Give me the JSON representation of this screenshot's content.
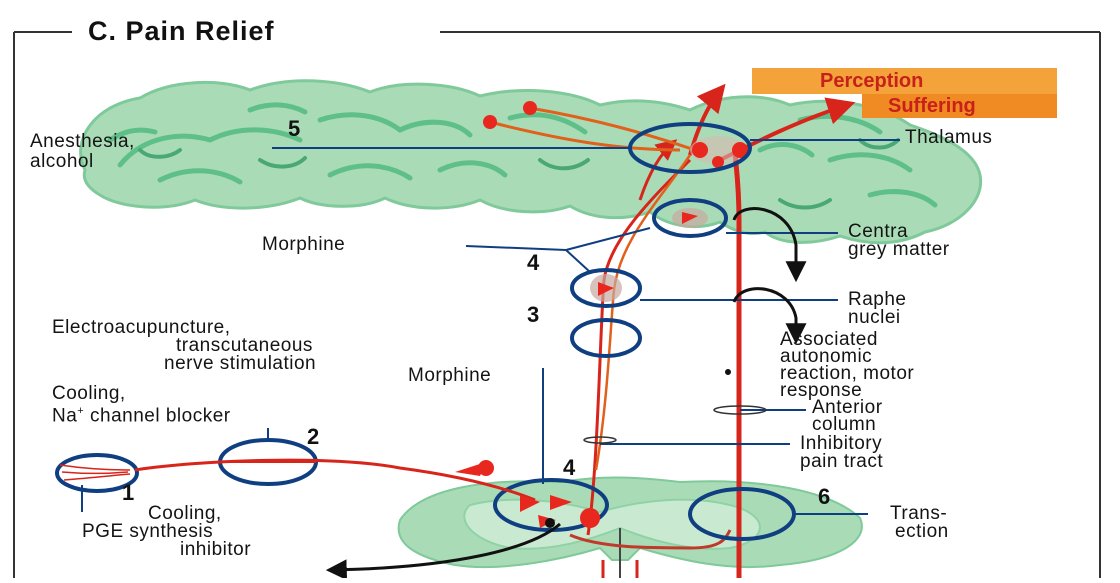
{
  "title": "C. Pain Relief",
  "colors": {
    "brain_fill": "#a9dcb6",
    "brain_dark": "#5fbf88",
    "tract_red": "#d8251c",
    "nerve_orange": "#e0601c",
    "circle_blue": "#0f3f80",
    "perception_box": "#f4a23a",
    "suffering_box": "#f08a22"
  },
  "labels": {
    "perception": "Perception",
    "suffering": "Suffering",
    "thalamus": "Thalamus",
    "anesthesia_line1": "Anesthesia,",
    "anesthesia_line2": "alcohol",
    "morphine_top": "Morphine",
    "central_grey_line1": "Centra",
    "central_grey_line2": "grey matter",
    "raphe_line1": "Raphe",
    "raphe_line2": "nuclei",
    "electro_line1": "Electroacupuncture,",
    "electro_line2": "transcutaneous",
    "electro_line3": "nerve stimulation",
    "associated_line1": "Associated",
    "associated_line2": "autonomic",
    "associated_line3": "reaction, motor",
    "associated_line4": "response",
    "morphine_bottom": "Morphine",
    "cooling_na_line1": "Cooling,",
    "cooling_na_line2": "Na",
    "cooling_na_sup": "+",
    "cooling_na_line2b": " channel blocker",
    "anterior_line1": "Anterior",
    "anterior_line2": "column",
    "inhibitory_line1": "Inhibitory",
    "inhibitory_line2": "pain tract",
    "cooling_pge_line1": "Cooling,",
    "cooling_pge_line2": "PGE synthesis",
    "cooling_pge_line3": "inhibitor",
    "transection_line1": "Trans-",
    "transection_line2": "ection"
  },
  "numbers": {
    "n5": "5",
    "n4_top": "4",
    "n3": "3",
    "n2": "2",
    "n1": "1",
    "n4_bottom": "4",
    "n6": "6"
  }
}
